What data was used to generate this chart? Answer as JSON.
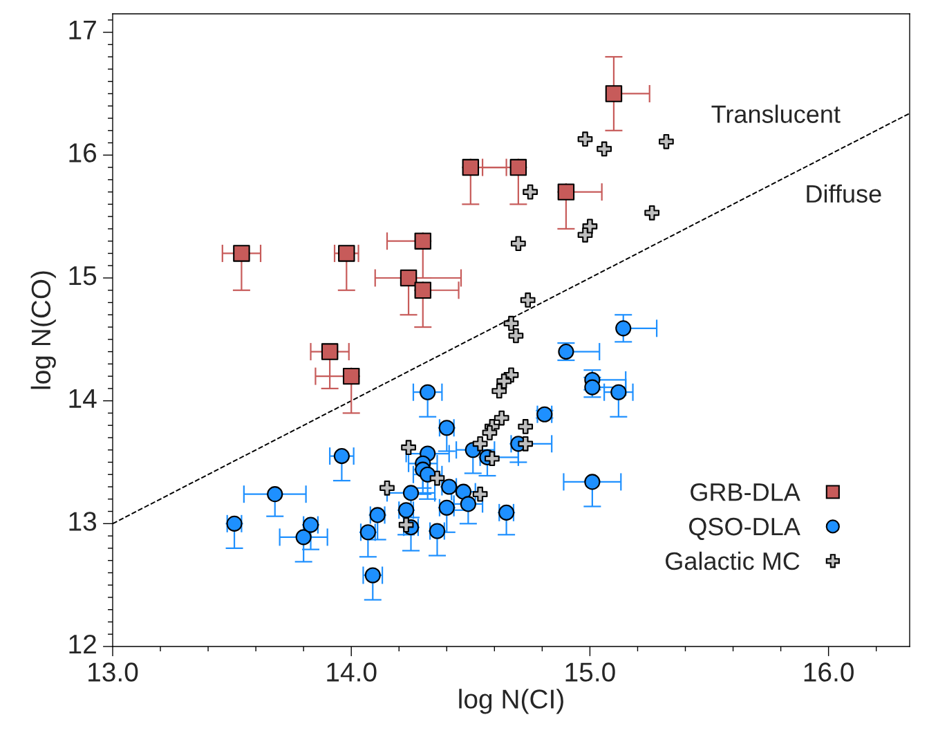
{
  "chart_data": {
    "type": "scatter",
    "xlabel": "log N(CI)",
    "ylabel": "log N(CO)",
    "xlim": [
      13.0,
      16.34
    ],
    "ylim": [
      12.0,
      17.15
    ],
    "xticks": [
      {
        "value": 13.0,
        "label": "13.0"
      },
      {
        "value": 14.0,
        "label": "14.0"
      },
      {
        "value": 15.0,
        "label": "15.0"
      },
      {
        "value": 16.0,
        "label": "16.0"
      }
    ],
    "yticks": [
      12,
      13,
      14,
      15,
      16,
      17
    ],
    "grid": false,
    "legend": "bottom right",
    "annotations": [
      "Translucent",
      "Diffuse"
    ],
    "series": [
      {
        "name": "GRB-DLA",
        "marker": "square",
        "color": "#c75b5a",
        "x": [
          13.54,
          13.98,
          14.3,
          14.24,
          14.3,
          14.5,
          14.7,
          14.9,
          15.1,
          13.91,
          14.0
        ],
        "values": [
          15.2,
          15.2,
          15.3,
          15.0,
          14.9,
          15.9,
          15.9,
          15.7,
          16.5,
          14.4,
          14.2
        ],
        "errors": [
          [
            14.9,
            15.2
          ],
          [
            14.9,
            15.2
          ],
          [
            15.0,
            15.3
          ],
          [
            14.7,
            15.0
          ],
          [
            14.6,
            14.9
          ],
          [
            15.6,
            15.9
          ],
          [
            15.6,
            15.9
          ],
          [
            15.4,
            15.7
          ],
          0.3,
          [
            14.1,
            14.4
          ],
          [
            13.9,
            14.2
          ]
        ],
        "xerrors": [
          0.08,
          0.05,
          [
            14.15,
            14.3
          ],
          [
            14.1,
            14.46
          ],
          [
            14.3,
            14.45
          ],
          [
            14.5,
            14.65
          ],
          [
            14.55,
            14.7
          ],
          [
            14.9,
            15.05
          ],
          [
            15.1,
            15.25
          ],
          0.08,
          [
            13.85,
            14.0
          ]
        ]
      },
      {
        "name": "QSO-DLA",
        "marker": "circle",
        "color": "#1e90ff",
        "x": [
          13.51,
          13.68,
          13.8,
          13.83,
          13.96,
          14.09,
          14.07,
          14.11,
          14.23,
          14.25,
          14.25,
          14.36,
          14.4,
          14.41,
          14.47,
          14.49,
          14.65,
          14.32,
          14.3,
          14.3,
          14.32,
          14.4,
          14.32,
          14.51,
          14.57,
          14.7,
          14.81,
          14.9,
          15.01,
          15.01,
          15.12,
          15.14,
          15.01
        ],
        "values": [
          13.0,
          13.24,
          12.89,
          12.99,
          13.55,
          12.58,
          12.93,
          13.07,
          13.11,
          13.25,
          12.97,
          12.94,
          13.13,
          13.3,
          13.26,
          13.16,
          13.09,
          13.57,
          13.49,
          13.44,
          13.4,
          13.78,
          14.07,
          13.6,
          13.54,
          13.65,
          13.89,
          14.4,
          14.17,
          14.11,
          14.07,
          14.59,
          13.34
        ],
        "errors": [
          [
            12.8,
            13.0
          ],
          [
            13.06,
            13.24
          ],
          [
            12.69,
            12.89
          ],
          [
            12.79,
            12.99
          ],
          [
            13.35,
            13.55
          ],
          [
            12.38,
            12.58
          ],
          [
            12.73,
            12.93
          ],
          [
            12.87,
            13.07
          ],
          [
            12.91,
            13.11
          ],
          [
            13.05,
            13.25
          ],
          [
            12.78,
            12.97
          ],
          [
            12.74,
            12.94
          ],
          [
            12.93,
            13.13
          ],
          null,
          [
            13.11,
            13.26
          ],
          [
            13.0,
            13.16
          ],
          [
            12.91,
            13.09
          ],
          null,
          [
            13.29,
            13.49
          ],
          [
            13.24,
            13.44
          ],
          [
            13.2,
            13.4
          ],
          [
            13.59,
            13.78
          ],
          [
            13.87,
            14.07
          ],
          [
            13.41,
            13.6
          ],
          [
            13.39,
            13.54
          ],
          [
            13.5,
            13.65
          ],
          0.03,
          0.07,
          0.08,
          0.08,
          [
            13.87,
            14.07
          ],
          0.11,
          [
            13.14,
            13.34
          ]
        ],
        "xerrors": [
          0.03,
          0.13,
          0.1,
          0.03,
          0.05,
          0.04,
          0.03,
          0.03,
          0.03,
          0.1,
          0.03,
          0.03,
          0.03,
          0.03,
          0.05,
          0.06,
          0.03,
          0.09,
          0.06,
          null,
          0.06,
          0.03,
          0.06,
          [
            14.44,
            14.6
          ],
          [
            14.54,
            14.7
          ],
          [
            14.67,
            14.84
          ],
          0.03,
          [
            14.9,
            15.04
          ],
          [
            15.01,
            15.15
          ],
          [
            15.01,
            15.15
          ],
          0.06,
          [
            15.14,
            15.28
          ],
          0.12
        ]
      },
      {
        "name": "Galactic MC",
        "marker": "cross",
        "color": "#bebebe",
        "x": [
          14.98,
          15.06,
          15.32,
          14.75,
          15.26,
          15.0,
          14.98,
          14.7,
          14.74,
          14.67,
          14.69,
          14.67,
          14.64,
          14.62,
          14.63,
          14.59,
          14.58,
          14.73,
          14.54,
          14.73,
          14.24,
          14.59,
          14.36,
          14.15,
          14.54,
          14.23
        ],
        "values": [
          16.13,
          16.05,
          16.11,
          15.7,
          15.53,
          15.42,
          15.35,
          15.28,
          14.82,
          14.63,
          14.53,
          14.21,
          14.16,
          14.08,
          13.86,
          13.79,
          13.74,
          13.79,
          13.65,
          13.65,
          13.62,
          13.53,
          13.37,
          13.29,
          13.24,
          12.99
        ]
      },
      {
        "type": "line",
        "line_style": "dashed",
        "color": "#000000",
        "x": [
          13.0,
          16.34
        ],
        "values": [
          13.0,
          16.34
        ]
      }
    ]
  }
}
